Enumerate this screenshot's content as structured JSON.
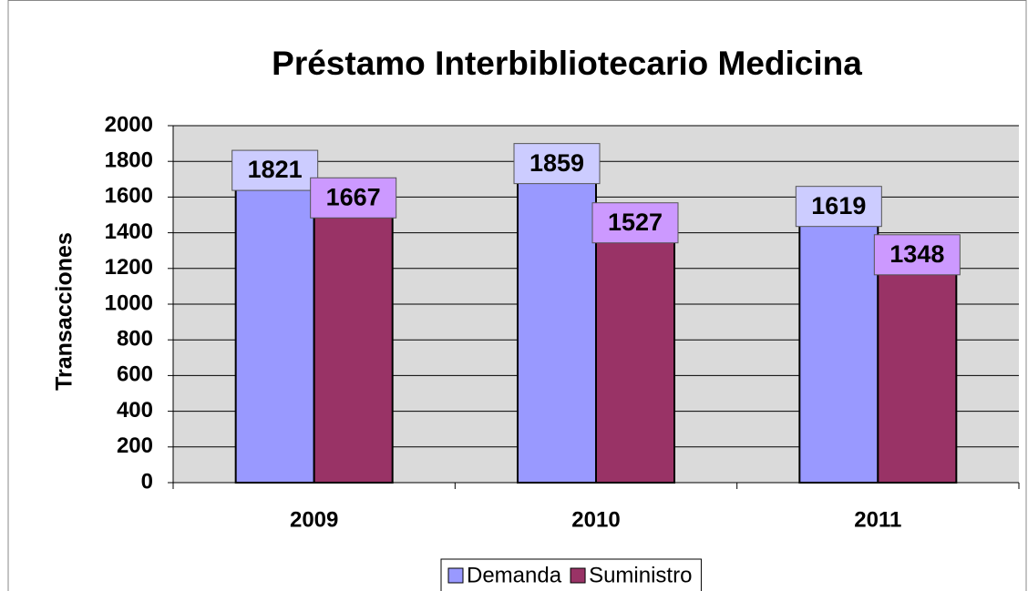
{
  "chart_data": {
    "type": "bar",
    "title": "Préstamo Interbibliotecario Medicina",
    "y_label": "Transacciones",
    "categories": [
      "2009",
      "2010",
      "2011"
    ],
    "series": [
      {
        "name": "Demanda",
        "color": "#9999ff",
        "label_color": "#ccccff",
        "values": [
          1821,
          1859,
          1619
        ]
      },
      {
        "name": "Suministro",
        "color": "#993366",
        "label_color": "#cc99ff",
        "values": [
          1667,
          1527,
          1348
        ]
      }
    ],
    "ylim": [
      0,
      2000
    ],
    "yticks": [
      0,
      200,
      400,
      600,
      800,
      1000,
      1200,
      1400,
      1600,
      1800,
      2000
    ],
    "grid": true,
    "legend": "bottom"
  }
}
